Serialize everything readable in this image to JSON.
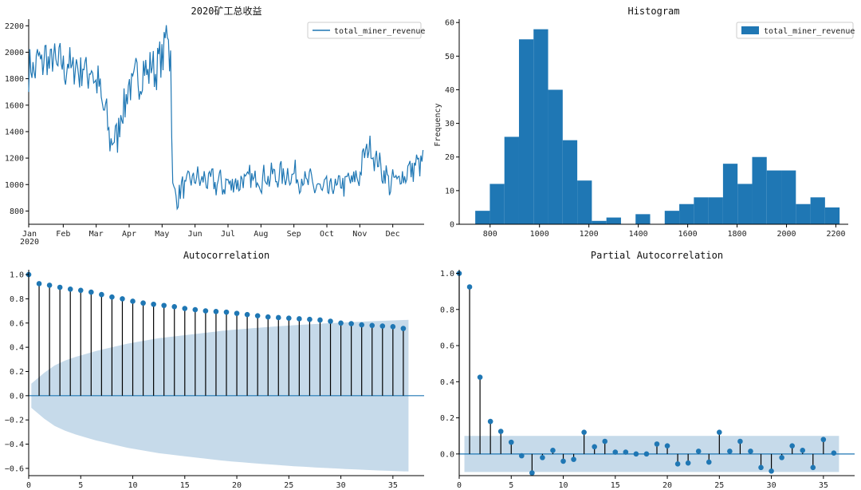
{
  "colors": {
    "series": "#1f77b4",
    "band": "#bcd4e6",
    "axis": "#000000",
    "stem": "#000000"
  },
  "chart_data": [
    {
      "type": "line",
      "title": "2020矿工总收益",
      "legend": "total_miner_revenue",
      "legend_position": "top-right",
      "xlabel": "",
      "ylabel": "",
      "x_ticks": [
        "Jan\n2020",
        "Feb",
        "Mar",
        "Apr",
        "May",
        "Jun",
        "Jul",
        "Aug",
        "Sep",
        "Oct",
        "Nov",
        "Dec"
      ],
      "y_ticks": [
        800,
        1000,
        1200,
        1400,
        1600,
        1800,
        2000,
        2200
      ],
      "ylim": [
        700,
        2250
      ],
      "segments": [
        {
          "month_start": 0,
          "month_end": 4.3,
          "low": 1700,
          "high": 2230,
          "center": 1950,
          "trend": -0.05
        },
        {
          "month_start": 1.9,
          "month_end": 3.2,
          "low": 1200,
          "high": 2080,
          "center": 1600
        },
        {
          "month_start": 4.3,
          "month_end": 4.45,
          "low": 900,
          "high": 2190,
          "center": 1400
        },
        {
          "month_start": 4.45,
          "month_end": 11.99,
          "low": 740,
          "high": 1300,
          "center": 1000
        }
      ],
      "approx_points": [
        [
          "2020-01-01",
          1850
        ],
        [
          "2020-01-15",
          1950
        ],
        [
          "2020-02-01",
          1900
        ],
        [
          "2020-02-15",
          1880
        ],
        [
          "2020-03-01",
          1850
        ],
        [
          "2020-03-10",
          1600
        ],
        [
          "2020-03-15",
          1400
        ],
        [
          "2020-03-20",
          1300
        ],
        [
          "2020-04-01",
          1700
        ],
        [
          "2020-04-15",
          1850
        ],
        [
          "2020-05-01",
          1900
        ],
        [
          "2020-05-10",
          2190
        ],
        [
          "2020-05-12",
          1000
        ],
        [
          "2020-05-15",
          900
        ],
        [
          "2020-06-01",
          1050
        ],
        [
          "2020-07-01",
          1000
        ],
        [
          "2020-08-01",
          1050
        ],
        [
          "2020-09-01",
          1080
        ],
        [
          "2020-10-01",
          950
        ],
        [
          "2020-11-01",
          1050
        ],
        [
          "2020-11-10",
          1300
        ],
        [
          "2020-12-01",
          1000
        ],
        [
          "2020-12-31",
          1180
        ]
      ]
    },
    {
      "type": "bar",
      "title": "Histogram",
      "legend": "total_miner_revenue",
      "legend_position": "top-right",
      "ylabel": "Frequency",
      "x_ticks": [
        800,
        1000,
        1200,
        1400,
        1600,
        1800,
        2000,
        2200
      ],
      "y_ticks": [
        0,
        10,
        20,
        30,
        40,
        50,
        60
      ],
      "xlim": [
        675,
        2250
      ],
      "ylim": [
        0,
        61
      ],
      "bin_edges": [
        740,
        799,
        858,
        917,
        976,
        1035,
        1094,
        1153,
        1212,
        1271,
        1330,
        1389,
        1448,
        1507,
        1566,
        1625,
        1684,
        1743,
        1802,
        1861,
        1920,
        1979,
        2038,
        2097,
        2156,
        2215
      ],
      "counts": [
        4,
        12,
        26,
        55,
        58,
        40,
        25,
        13,
        1,
        2,
        0,
        3,
        0,
        4,
        6,
        8,
        8,
        18,
        12,
        20,
        16,
        16,
        6,
        8,
        5
      ]
    },
    {
      "type": "scatter",
      "title": "Autocorrelation",
      "x_ticks": [
        0,
        5,
        10,
        15,
        20,
        25,
        30,
        35
      ],
      "y_ticks": [
        "−0.6",
        "−0.4",
        "−0.2",
        "0.0",
        "0.2",
        "0.4",
        "0.6",
        "0.8",
        "1.0"
      ],
      "xlim": [
        0,
        38
      ],
      "ylim": [
        -0.66,
        1.04
      ],
      "lags": [
        0,
        1,
        2,
        3,
        4,
        5,
        6,
        7,
        8,
        9,
        10,
        11,
        12,
        13,
        14,
        15,
        16,
        17,
        18,
        19,
        20,
        21,
        22,
        23,
        24,
        25,
        26,
        27,
        28,
        29,
        30,
        31,
        32,
        33,
        34,
        35,
        36
      ],
      "values": [
        1.0,
        0.925,
        0.912,
        0.895,
        0.88,
        0.87,
        0.855,
        0.835,
        0.815,
        0.8,
        0.78,
        0.765,
        0.755,
        0.745,
        0.735,
        0.72,
        0.71,
        0.7,
        0.695,
        0.69,
        0.68,
        0.67,
        0.66,
        0.65,
        0.645,
        0.64,
        0.635,
        0.63,
        0.625,
        0.615,
        0.6,
        0.595,
        0.585,
        0.58,
        0.575,
        0.57,
        0.555
      ],
      "confidence_upper": [
        0.1,
        0.19,
        0.25,
        0.29,
        0.32,
        0.345,
        0.37,
        0.39,
        0.41,
        0.43,
        0.445,
        0.46,
        0.475,
        0.485,
        0.495,
        0.505,
        0.515,
        0.525,
        0.535,
        0.543,
        0.55,
        0.557,
        0.564,
        0.57,
        0.576,
        0.582,
        0.587,
        0.592,
        0.597,
        0.601,
        0.605,
        0.609,
        0.613,
        0.617,
        0.62,
        0.623,
        0.626
      ]
    },
    {
      "type": "scatter",
      "title": "Partial Autocorrelation",
      "x_ticks": [
        0,
        5,
        10,
        15,
        20,
        25,
        30,
        35
      ],
      "y_ticks": [
        "0.0",
        "0.2",
        "0.4",
        "0.6",
        "0.8",
        "1.0"
      ],
      "xlim": [
        0,
        38
      ],
      "ylim": [
        -0.12,
        1.02
      ],
      "lags": [
        0,
        1,
        2,
        3,
        4,
        5,
        6,
        7,
        8,
        9,
        10,
        11,
        12,
        13,
        14,
        15,
        16,
        17,
        18,
        19,
        20,
        21,
        22,
        23,
        24,
        25,
        26,
        27,
        28,
        29,
        30,
        31,
        32,
        33,
        34,
        35,
        36
      ],
      "values": [
        1.0,
        0.925,
        0.425,
        0.18,
        0.125,
        0.065,
        -0.01,
        -0.105,
        -0.02,
        0.02,
        -0.04,
        -0.03,
        0.12,
        0.04,
        0.07,
        0.01,
        0.01,
        0.0,
        0.0,
        0.055,
        0.045,
        -0.055,
        -0.05,
        0.015,
        -0.045,
        0.12,
        0.015,
        0.07,
        0.015,
        -0.075,
        -0.095,
        -0.02,
        0.045,
        0.02,
        -0.075,
        0.08,
        0.005
      ],
      "confidence": 0.1
    }
  ]
}
